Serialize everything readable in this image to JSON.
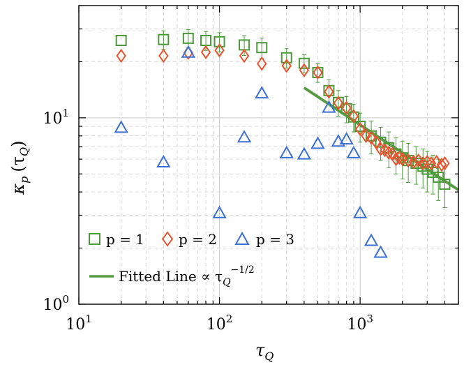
{
  "chart_data": {
    "type": "scatter",
    "title": "",
    "xlabel": "τ_Q",
    "ylabel": "κ_p (τ_Q)",
    "xscale": "log",
    "yscale": "log",
    "xlim": [
      10,
      5000
    ],
    "ylim": [
      1,
      40
    ],
    "grid": true,
    "legend_position": "bottom-left",
    "x_ticks": [
      {
        "base": "10",
        "exp": "1"
      },
      {
        "base": "10",
        "exp": "2"
      },
      {
        "base": "10",
        "exp": "3"
      }
    ],
    "y_ticks": [
      {
        "base": "10",
        "exp": "0"
      },
      {
        "base": "10",
        "exp": "1"
      }
    ],
    "series": [
      {
        "name": "p = 1",
        "marker": "square",
        "color": "#4a9a3a",
        "x": [
          20,
          40,
          60,
          80,
          100,
          150,
          200,
          300,
          400,
          500,
          600,
          700,
          800,
          900,
          1000,
          1200,
          1400,
          1600,
          1800,
          2000,
          2200,
          2500,
          2800,
          3000,
          3300,
          3600,
          4000
        ],
        "y": [
          26,
          26.3,
          26.7,
          26,
          25.6,
          24.6,
          23.8,
          21,
          19.6,
          17.5,
          14,
          12.1,
          11.2,
          10.1,
          9.0,
          8.0,
          7.4,
          6.9,
          6.4,
          6.1,
          5.9,
          5.7,
          5.5,
          5.3,
          5.1,
          4.8,
          4.4
        ],
        "err": [
          0,
          3.0,
          3.0,
          3.0,
          3.0,
          3.0,
          3.0,
          2.5,
          2.2,
          2.0,
          2.0,
          1.9,
          1.8,
          1.7,
          1.6,
          1.6,
          1.5,
          1.5,
          1.4,
          1.4,
          1.4,
          1.3,
          1.3,
          1.3,
          1.2,
          1.2,
          1.1
        ]
      },
      {
        "name": "p = 2",
        "marker": "diamond",
        "color": "#e8552f",
        "x": [
          20,
          40,
          60,
          80,
          100,
          150,
          200,
          300,
          400,
          500,
          600,
          700,
          800,
          900,
          1000,
          1100,
          1200,
          1300,
          1400,
          1500,
          1600,
          1700,
          1800,
          1900,
          2000,
          2200,
          2400,
          2600,
          2800,
          3000,
          3200,
          3500,
          3800,
          4000
        ],
        "y": [
          21.5,
          21.5,
          22.3,
          22.5,
          23,
          21.5,
          19.5,
          19,
          18,
          17.5,
          13.8,
          12.0,
          11.3,
          10.2,
          8.7,
          8.0,
          7.8,
          7.4,
          6.8,
          6.7,
          6.5,
          6.4,
          6.0,
          6.1,
          6.0,
          5.9,
          5.8,
          5.9,
          5.7,
          5.8,
          5.7,
          5.8,
          5.6,
          5.7
        ]
      },
      {
        "name": "p = 3",
        "marker": "triangle",
        "color": "#3a6fd6",
        "x": [
          20,
          40,
          60,
          100,
          150,
          200,
          300,
          400,
          500,
          600,
          700,
          800,
          900,
          1000,
          1200,
          1400
        ],
        "y": [
          8.9,
          5.8,
          22.5,
          3.1,
          7.9,
          13.6,
          6.5,
          6.4,
          7.3,
          11.4,
          7.5,
          7.7,
          6.5,
          3.1,
          2.2,
          1.9
        ]
      }
    ],
    "fit_line": {
      "name": "Fitted Line ∝ τ_Q^{-1/2}",
      "color": "#5a9a44",
      "x_range": [
        400,
        5000
      ],
      "coef": 290,
      "exponent": -0.5
    },
    "legend": {
      "p1_label": "p = 1",
      "p2_label": "p = 2",
      "p3_label": "p = 3",
      "fit_label_prefix": "Fitted Line ∝ τ",
      "fit_label_sub": "Q",
      "fit_label_sup": "−1/2"
    },
    "axis_label_parts": {
      "x_main": "τ",
      "x_sub": "Q",
      "y_main": "κ",
      "y_sub": "p",
      "y_arg": "(τ",
      "y_arg_sub": "Q",
      "y_close": ")"
    }
  }
}
